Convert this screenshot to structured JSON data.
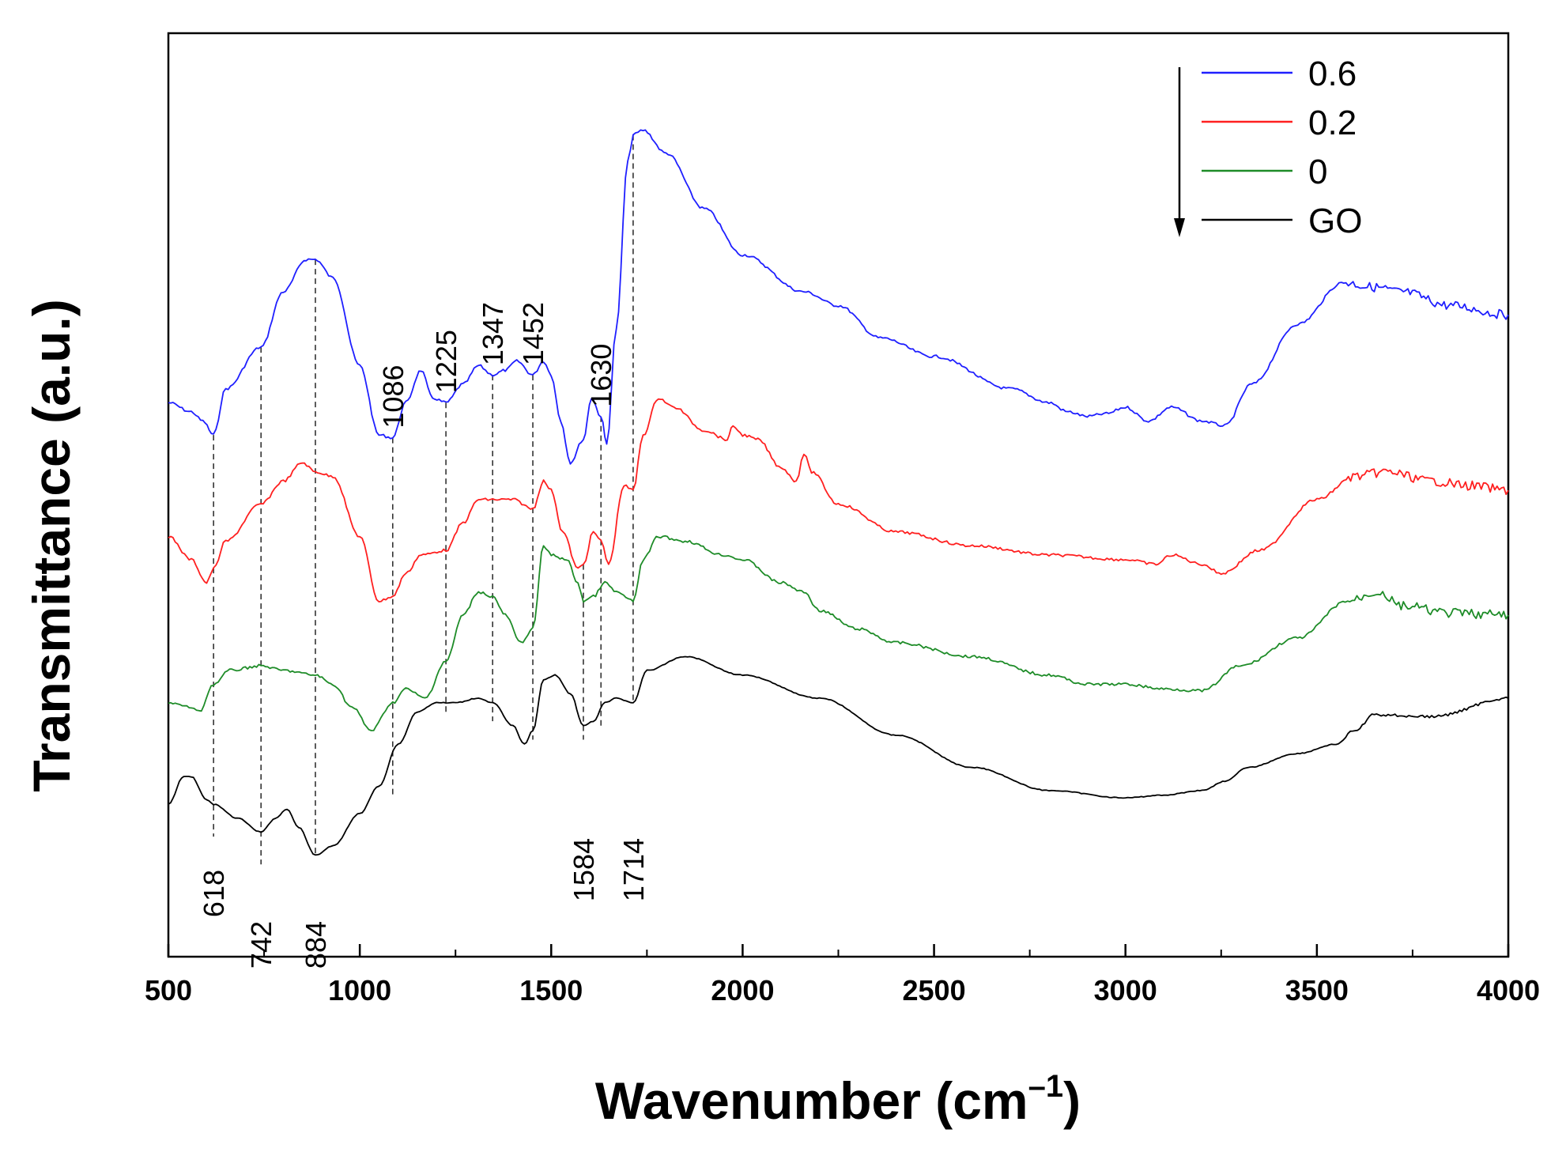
{
  "chart_data": {
    "type": "line",
    "title": "",
    "xlabel_main": "Wavenumber (cm",
    "xlabel_sup": "–1",
    "xlabel_close": ")",
    "ylabel": "Transmittance (a.u.)",
    "xlim": [
      500,
      4000
    ],
    "ylim": [
      0,
      10
    ],
    "xticks": [
      500,
      1000,
      1500,
      2000,
      2500,
      3000,
      3500,
      4000
    ],
    "xtick_labels": [
      "500",
      "1000",
      "1500",
      "2000",
      "2500",
      "3000",
      "3500",
      "4000"
    ],
    "legend_position": "top-right",
    "legend_arrow": "down",
    "series": [
      {
        "name": "0.6",
        "color": "#1f1fff",
        "points": [
          [
            500,
            6.0
          ],
          [
            560,
            5.9
          ],
          [
            590,
            5.8
          ],
          [
            618,
            5.65
          ],
          [
            650,
            6.15
          ],
          [
            742,
            6.6
          ],
          [
            800,
            7.2
          ],
          [
            860,
            7.55
          ],
          [
            884,
            7.55
          ],
          [
            930,
            7.35
          ],
          [
            1000,
            6.4
          ],
          [
            1050,
            5.65
          ],
          [
            1086,
            5.62
          ],
          [
            1120,
            6.0
          ],
          [
            1160,
            6.35
          ],
          [
            1190,
            6.05
          ],
          [
            1225,
            6.0
          ],
          [
            1270,
            6.2
          ],
          [
            1310,
            6.4
          ],
          [
            1347,
            6.3
          ],
          [
            1380,
            6.35
          ],
          [
            1410,
            6.45
          ],
          [
            1452,
            6.3
          ],
          [
            1480,
            6.45
          ],
          [
            1500,
            6.3
          ],
          [
            1525,
            5.8
          ],
          [
            1550,
            5.35
          ],
          [
            1584,
            5.6
          ],
          [
            1605,
            6.05
          ],
          [
            1630,
            5.85
          ],
          [
            1645,
            5.55
          ],
          [
            1670,
            6.8
          ],
          [
            1700,
            8.6
          ],
          [
            1714,
            8.9
          ],
          [
            1740,
            8.95
          ],
          [
            1800,
            8.7
          ],
          [
            1900,
            8.1
          ],
          [
            2000,
            7.6
          ],
          [
            2160,
            7.2
          ],
          [
            2250,
            7.05
          ],
          [
            2360,
            6.7
          ],
          [
            2500,
            6.5
          ],
          [
            2700,
            6.15
          ],
          [
            2800,
            6.0
          ],
          [
            2850,
            5.9
          ],
          [
            2900,
            5.85
          ],
          [
            2950,
            5.88
          ],
          [
            3000,
            5.95
          ],
          [
            3060,
            5.8
          ],
          [
            3120,
            5.95
          ],
          [
            3200,
            5.8
          ],
          [
            3260,
            5.75
          ],
          [
            3330,
            6.2
          ],
          [
            3450,
            6.85
          ],
          [
            3570,
            7.3
          ],
          [
            3650,
            7.25
          ],
          [
            3720,
            7.2
          ],
          [
            3850,
            7.05
          ],
          [
            4000,
            6.95
          ]
        ]
      },
      {
        "name": "0.2",
        "color": "#ff2020",
        "points": [
          [
            500,
            4.55
          ],
          [
            560,
            4.3
          ],
          [
            600,
            4.05
          ],
          [
            618,
            4.2
          ],
          [
            650,
            4.5
          ],
          [
            742,
            4.9
          ],
          [
            800,
            5.15
          ],
          [
            850,
            5.35
          ],
          [
            884,
            5.25
          ],
          [
            930,
            5.2
          ],
          [
            1000,
            4.55
          ],
          [
            1050,
            3.85
          ],
          [
            1086,
            3.9
          ],
          [
            1120,
            4.15
          ],
          [
            1160,
            4.35
          ],
          [
            1225,
            4.4
          ],
          [
            1270,
            4.7
          ],
          [
            1310,
            4.95
          ],
          [
            1347,
            4.95
          ],
          [
            1400,
            4.95
          ],
          [
            1452,
            4.85
          ],
          [
            1480,
            5.15
          ],
          [
            1500,
            5.05
          ],
          [
            1530,
            4.6
          ],
          [
            1570,
            4.2
          ],
          [
            1584,
            4.25
          ],
          [
            1610,
            4.6
          ],
          [
            1630,
            4.5
          ],
          [
            1650,
            4.25
          ],
          [
            1690,
            5.1
          ],
          [
            1714,
            5.05
          ],
          [
            1740,
            5.65
          ],
          [
            1780,
            6.05
          ],
          [
            1820,
            5.95
          ],
          [
            1900,
            5.7
          ],
          [
            1960,
            5.6
          ],
          [
            1975,
            5.75
          ],
          [
            2000,
            5.65
          ],
          [
            2040,
            5.6
          ],
          [
            2100,
            5.3
          ],
          [
            2140,
            5.15
          ],
          [
            2160,
            5.45
          ],
          [
            2180,
            5.25
          ],
          [
            2250,
            4.9
          ],
          [
            2400,
            4.6
          ],
          [
            2600,
            4.45
          ],
          [
            2800,
            4.35
          ],
          [
            3000,
            4.3
          ],
          [
            3080,
            4.25
          ],
          [
            3120,
            4.35
          ],
          [
            3200,
            4.25
          ],
          [
            3250,
            4.15
          ],
          [
            3350,
            4.4
          ],
          [
            3500,
            4.95
          ],
          [
            3600,
            5.2
          ],
          [
            3680,
            5.25
          ],
          [
            3800,
            5.15
          ],
          [
            3900,
            5.1
          ],
          [
            4000,
            5.05
          ]
        ]
      },
      {
        "name": "0",
        "color": "#1e8c28",
        "points": [
          [
            500,
            2.75
          ],
          [
            560,
            2.7
          ],
          [
            580,
            2.65
          ],
          [
            618,
            2.95
          ],
          [
            660,
            3.1
          ],
          [
            742,
            3.15
          ],
          [
            800,
            3.1
          ],
          [
            884,
            3.05
          ],
          [
            930,
            2.95
          ],
          [
            980,
            2.7
          ],
          [
            1030,
            2.45
          ],
          [
            1086,
            2.75
          ],
          [
            1120,
            2.9
          ],
          [
            1170,
            2.8
          ],
          [
            1225,
            3.2
          ],
          [
            1270,
            3.7
          ],
          [
            1310,
            3.95
          ],
          [
            1347,
            3.9
          ],
          [
            1380,
            3.7
          ],
          [
            1420,
            3.4
          ],
          [
            1452,
            3.55
          ],
          [
            1480,
            4.45
          ],
          [
            1500,
            4.35
          ],
          [
            1540,
            4.3
          ],
          [
            1570,
            4.05
          ],
          [
            1584,
            3.85
          ],
          [
            1610,
            3.9
          ],
          [
            1640,
            4.05
          ],
          [
            1670,
            3.95
          ],
          [
            1714,
            3.85
          ],
          [
            1740,
            4.3
          ],
          [
            1780,
            4.55
          ],
          [
            1850,
            4.5
          ],
          [
            1950,
            4.35
          ],
          [
            2000,
            4.3
          ],
          [
            2100,
            4.05
          ],
          [
            2160,
            3.95
          ],
          [
            2200,
            3.75
          ],
          [
            2300,
            3.55
          ],
          [
            2400,
            3.4
          ],
          [
            2600,
            3.25
          ],
          [
            2800,
            3.05
          ],
          [
            2900,
            2.95
          ],
          [
            3000,
            2.95
          ],
          [
            3100,
            2.9
          ],
          [
            3200,
            2.88
          ],
          [
            3300,
            3.15
          ],
          [
            3450,
            3.45
          ],
          [
            3580,
            3.85
          ],
          [
            3660,
            3.95
          ],
          [
            3720,
            3.8
          ],
          [
            3850,
            3.72
          ],
          [
            4000,
            3.7
          ]
        ]
      },
      {
        "name": "GO",
        "color": "#000000",
        "points": [
          [
            500,
            1.65
          ],
          [
            540,
            1.95
          ],
          [
            560,
            1.95
          ],
          [
            600,
            1.7
          ],
          [
            618,
            1.65
          ],
          [
            680,
            1.5
          ],
          [
            742,
            1.35
          ],
          [
            780,
            1.5
          ],
          [
            810,
            1.6
          ],
          [
            840,
            1.4
          ],
          [
            884,
            1.1
          ],
          [
            930,
            1.2
          ],
          [
            1000,
            1.55
          ],
          [
            1050,
            1.85
          ],
          [
            1100,
            2.3
          ],
          [
            1150,
            2.65
          ],
          [
            1200,
            2.75
          ],
          [
            1250,
            2.75
          ],
          [
            1310,
            2.8
          ],
          [
            1347,
            2.75
          ],
          [
            1400,
            2.5
          ],
          [
            1430,
            2.3
          ],
          [
            1452,
            2.45
          ],
          [
            1480,
            3.0
          ],
          [
            1510,
            3.05
          ],
          [
            1550,
            2.85
          ],
          [
            1584,
            2.5
          ],
          [
            1610,
            2.55
          ],
          [
            1640,
            2.75
          ],
          [
            1670,
            2.8
          ],
          [
            1714,
            2.75
          ],
          [
            1750,
            3.1
          ],
          [
            1850,
            3.25
          ],
          [
            2000,
            3.05
          ],
          [
            2200,
            2.8
          ],
          [
            2400,
            2.4
          ],
          [
            2600,
            2.05
          ],
          [
            2800,
            1.8
          ],
          [
            3000,
            1.72
          ],
          [
            3100,
            1.75
          ],
          [
            3200,
            1.8
          ],
          [
            3260,
            1.9
          ],
          [
            3320,
            2.05
          ],
          [
            3450,
            2.2
          ],
          [
            3550,
            2.3
          ],
          [
            3600,
            2.45
          ],
          [
            3650,
            2.62
          ],
          [
            3800,
            2.6
          ],
          [
            4000,
            2.8
          ]
        ]
      }
    ],
    "peak_markers": [
      {
        "x": 618,
        "label": "618",
        "line_top": 5.65,
        "line_bottom": 1.3,
        "label_pos": "below"
      },
      {
        "x": 742,
        "label": "742",
        "line_top": 6.6,
        "line_bottom": 1.0,
        "label_pos": "below"
      },
      {
        "x": 884,
        "label": "884",
        "line_top": 7.55,
        "line_bottom": 1.1,
        "label_pos": "below"
      },
      {
        "x": 1086,
        "label": "1086",
        "line_top": 5.62,
        "line_bottom": 1.75,
        "label_pos": "above"
      },
      {
        "x": 1225,
        "label": "1225",
        "line_top": 6.0,
        "line_bottom": 2.65,
        "label_pos": "above"
      },
      {
        "x": 1347,
        "label": "1347",
        "line_top": 6.3,
        "line_bottom": 2.55,
        "label_pos": "above"
      },
      {
        "x": 1452,
        "label": "1452",
        "line_top": 6.3,
        "line_bottom": 2.35,
        "label_pos": "above"
      },
      {
        "x": 1584,
        "label": "1584",
        "line_top": 4.25,
        "line_bottom": 2.35,
        "label_pos": "below"
      },
      {
        "x": 1630,
        "label": "1630",
        "line_top": 5.85,
        "line_bottom": 2.5,
        "label_pos": "above"
      },
      {
        "x": 1714,
        "label": "1714",
        "line_top": 8.9,
        "line_bottom": 2.75,
        "label_pos": "below"
      }
    ]
  }
}
